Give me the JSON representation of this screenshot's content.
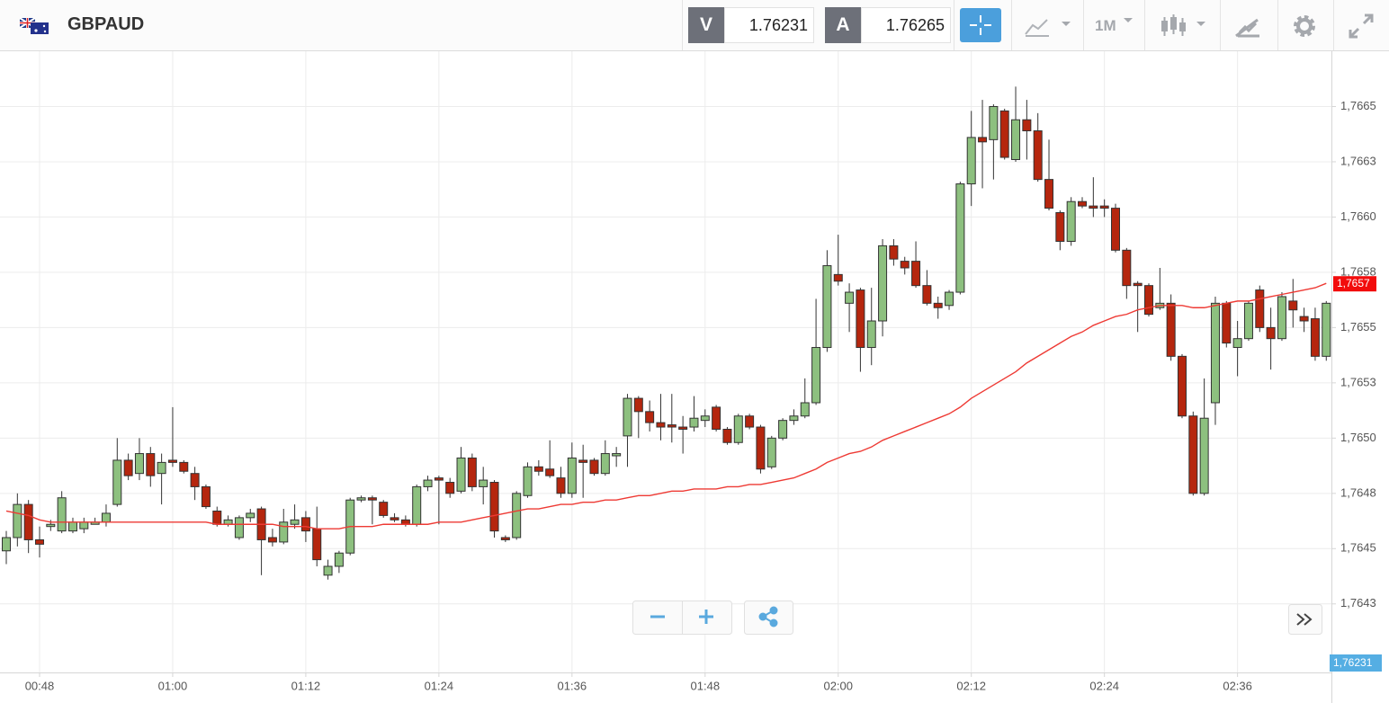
{
  "toolbar": {
    "symbol": "GBPAUD",
    "sell_label": "V",
    "sell_price": 1.76231,
    "buy_label": "A",
    "buy_price": 1.76265,
    "timeframe": "1M"
  },
  "chart_data": {
    "type": "candlestick",
    "categories": [
      null,
      null,
      null,
      "00:48",
      null,
      null,
      null,
      null,
      null,
      null,
      null,
      null,
      null,
      null,
      null,
      "01:00",
      null,
      null,
      null,
      null,
      null,
      null,
      null,
      null,
      null,
      null,
      null,
      "01:12",
      null,
      null,
      null,
      null,
      null,
      null,
      null,
      null,
      null,
      null,
      null,
      "01:24",
      null,
      null,
      null,
      null,
      null,
      null,
      null,
      null,
      null,
      null,
      null,
      "01:36",
      null,
      null,
      null,
      null,
      null,
      null,
      null,
      null,
      null,
      null,
      null,
      "01:48",
      null,
      null,
      null,
      null,
      null,
      null,
      null,
      null,
      null,
      null,
      null,
      "02:00",
      null,
      null,
      null,
      null,
      null,
      null,
      null,
      null,
      null,
      null,
      null,
      "02:12",
      null,
      null,
      null,
      null,
      null,
      null,
      null,
      null,
      null,
      null,
      null,
      "02:24",
      null,
      null,
      null,
      null,
      null,
      null,
      null,
      null,
      null,
      null,
      null,
      "02:36",
      null,
      null,
      null,
      null,
      null,
      null,
      null,
      null
    ],
    "open": [
      1.76449,
      1.76455,
      1.7647,
      1.76454,
      1.7646,
      1.76458,
      1.76458,
      1.76459,
      1.76461,
      1.76462,
      1.7647,
      1.7649,
      1.76484,
      1.76493,
      1.76484,
      1.7649,
      1.76489,
      1.76484,
      1.76478,
      1.76467,
      1.76461,
      1.76455,
      1.76464,
      1.76468,
      1.76455,
      1.76453,
      1.76461,
      1.76464,
      1.76459,
      1.76438,
      1.76442,
      1.76448,
      1.76472,
      1.76473,
      1.76471,
      1.76464,
      1.76463,
      1.76461,
      1.76478,
      1.76482,
      1.7648,
      1.76476,
      1.76491,
      1.76478,
      1.7648,
      1.76455,
      1.76455,
      1.76474,
      1.76487,
      1.76486,
      1.76482,
      1.76475,
      1.7649,
      1.7649,
      1.76484,
      1.76492,
      1.76501,
      1.76518,
      1.76512,
      1.76507,
      1.76506,
      1.76505,
      1.76505,
      1.76508,
      1.76514,
      1.76504,
      1.76498,
      1.7651,
      1.76505,
      1.76487,
      1.765,
      1.76508,
      1.7651,
      1.76516,
      1.76541,
      1.76574,
      1.76561,
      1.76567,
      1.76541,
      1.76553,
      1.76587,
      1.7658,
      1.7658,
      1.76569,
      1.76561,
      1.7656,
      1.76566,
      1.76615,
      1.76636,
      1.76635,
      1.76648,
      1.76626,
      1.76644,
      1.76639,
      1.76617,
      1.76602,
      1.76589,
      1.76607,
      1.76605,
      1.76605,
      1.76604,
      1.76585,
      1.7657,
      1.76569,
      1.76559,
      1.76561,
      1.76537,
      1.7651,
      1.76475,
      1.76516,
      1.76561,
      1.76541,
      1.76545,
      1.76567,
      1.7655,
      1.76545,
      1.76562,
      1.76555,
      1.76554,
      1.76537
    ],
    "high": [
      1.76458,
      1.76475,
      1.76472,
      1.7646,
      1.76463,
      1.76476,
      1.76464,
      1.76464,
      1.76464,
      1.7647,
      1.765,
      1.76493,
      1.765,
      1.76496,
      1.76493,
      1.76514,
      1.7649,
      1.76487,
      1.76479,
      1.76469,
      1.76465,
      1.76465,
      1.76468,
      1.76469,
      1.76459,
      1.76468,
      1.7647,
      1.76467,
      1.76469,
      1.76445,
      1.76449,
      1.76473,
      1.76474,
      1.76474,
      1.76472,
      1.76466,
      1.76465,
      1.76479,
      1.76483,
      1.76483,
      1.76482,
      1.76496,
      1.76493,
      1.76487,
      1.76481,
      1.76456,
      1.76476,
      1.76489,
      1.7649,
      1.76499,
      1.76487,
      1.76498,
      1.76497,
      1.76491,
      1.76499,
      1.76496,
      1.7652,
      1.76519,
      1.76517,
      1.7652,
      1.7652,
      1.7651,
      1.76519,
      1.76513,
      1.76515,
      1.76505,
      1.76511,
      1.76511,
      1.76506,
      1.76501,
      1.76509,
      1.76513,
      1.76527,
      1.76563,
      1.76585,
      1.76592,
      1.7657,
      1.76568,
      1.76568,
      1.7659,
      1.7659,
      1.76582,
      1.76589,
      1.76576,
      1.76564,
      1.76567,
      1.76616,
      1.76648,
      1.76653,
      1.76651,
      1.76649,
      1.76659,
      1.76653,
      1.76647,
      1.76635,
      1.76603,
      1.76609,
      1.76609,
      1.76618,
      1.76608,
      1.76606,
      1.76586,
      1.76571,
      1.7657,
      1.76577,
      1.76565,
      1.76538,
      1.76512,
      1.76527,
      1.76564,
      1.76562,
      1.76553,
      1.76562,
      1.76569,
      1.76559,
      1.76566,
      1.76572,
      1.76559,
      1.76559,
      1.76562
    ],
    "low": [
      1.76443,
      1.76451,
      1.76448,
      1.76446,
      1.76458,
      1.76457,
      1.76457,
      1.76457,
      1.76461,
      1.7646,
      1.76469,
      1.76481,
      1.76481,
      1.76478,
      1.7647,
      1.76487,
      1.76484,
      1.76472,
      1.76468,
      1.7646,
      1.7646,
      1.76454,
      1.76462,
      1.76438,
      1.76451,
      1.76452,
      1.76459,
      1.76453,
      1.76442,
      1.76436,
      1.76439,
      1.76447,
      1.76471,
      1.76461,
      1.76464,
      1.76462,
      1.7646,
      1.7646,
      1.76476,
      1.76461,
      1.76473,
      1.76475,
      1.76476,
      1.7647,
      1.76455,
      1.76453,
      1.76454,
      1.76473,
      1.76483,
      1.76482,
      1.76473,
      1.76473,
      1.76473,
      1.76483,
      1.76483,
      1.76487,
      1.76487,
      1.765,
      1.76503,
      1.76499,
      1.76498,
      1.76493,
      1.76503,
      1.76505,
      1.76503,
      1.76497,
      1.76497,
      1.76504,
      1.76484,
      1.76486,
      1.76499,
      1.76506,
      1.76509,
      1.76515,
      1.76539,
      1.76569,
      1.76548,
      1.7653,
      1.76533,
      1.76546,
      1.76578,
      1.76574,
      1.76568,
      1.7656,
      1.76554,
      1.76558,
      1.76565,
      1.76605,
      1.76613,
      1.76617,
      1.76626,
      1.76625,
      1.76626,
      1.76616,
      1.76603,
      1.76585,
      1.76587,
      1.76604,
      1.766,
      1.766,
      1.76584,
      1.76563,
      1.76548,
      1.76555,
      1.76558,
      1.76535,
      1.76509,
      1.76474,
      1.76474,
      1.76506,
      1.76541,
      1.76528,
      1.76544,
      1.76548,
      1.76531,
      1.76544,
      1.7655,
      1.76548,
      1.76535,
      1.76535
    ],
    "close": [
      1.76455,
      1.7647,
      1.76454,
      1.76452,
      1.76461,
      1.76473,
      1.76462,
      1.76462,
      1.76462,
      1.76466,
      1.7649,
      1.76483,
      1.76493,
      1.76483,
      1.76489,
      1.76489,
      1.76485,
      1.76478,
      1.76469,
      1.76461,
      1.76463,
      1.76464,
      1.76466,
      1.76454,
      1.76453,
      1.76462,
      1.76463,
      1.76458,
      1.76445,
      1.76442,
      1.76448,
      1.76472,
      1.76473,
      1.76472,
      1.76465,
      1.76463,
      1.76461,
      1.76478,
      1.76481,
      1.76481,
      1.76475,
      1.76491,
      1.76478,
      1.76481,
      1.76458,
      1.76454,
      1.76475,
      1.76487,
      1.76485,
      1.76483,
      1.76475,
      1.76491,
      1.76489,
      1.76484,
      1.76493,
      1.76493,
      1.76518,
      1.76512,
      1.76507,
      1.76505,
      1.76505,
      1.76504,
      1.76509,
      1.7651,
      1.76504,
      1.76498,
      1.7651,
      1.76505,
      1.76486,
      1.765,
      1.76508,
      1.7651,
      1.76516,
      1.76541,
      1.76578,
      1.76571,
      1.76566,
      1.76541,
      1.76553,
      1.76587,
      1.76581,
      1.76577,
      1.76569,
      1.76561,
      1.76559,
      1.76566,
      1.76615,
      1.76636,
      1.76634,
      1.7665,
      1.76627,
      1.76644,
      1.76639,
      1.76617,
      1.76604,
      1.76589,
      1.76607,
      1.76605,
      1.76604,
      1.76604,
      1.76585,
      1.76569,
      1.76569,
      1.76556,
      1.76561,
      1.76537,
      1.7651,
      1.76475,
      1.76509,
      1.76561,
      1.76543,
      1.76545,
      1.76561,
      1.7655,
      1.76545,
      1.76564,
      1.76558,
      1.76553,
      1.76537,
      1.76561
    ],
    "up_color": "#8dc07f",
    "down_color": "#b5260e",
    "moving_average": {
      "color": "#ee3a34",
      "values": [
        1.76467,
        1.76466,
        1.76465,
        1.76463,
        1.76462,
        1.76462,
        1.76462,
        1.76462,
        1.76462,
        1.76462,
        1.76462,
        1.76462,
        1.76462,
        1.76462,
        1.76462,
        1.76462,
        1.76462,
        1.76462,
        1.76462,
        1.76461,
        1.76461,
        1.76461,
        1.76461,
        1.76461,
        1.76461,
        1.7646,
        1.7646,
        1.7646,
        1.76459,
        1.76459,
        1.76459,
        1.7646,
        1.7646,
        1.7646,
        1.76461,
        1.76461,
        1.76461,
        1.76461,
        1.76461,
        1.76462,
        1.76462,
        1.76462,
        1.76463,
        1.76464,
        1.76465,
        1.76466,
        1.76467,
        1.76468,
        1.76468,
        1.76469,
        1.7647,
        1.7647,
        1.76471,
        1.76471,
        1.76472,
        1.76472,
        1.76473,
        1.76474,
        1.76474,
        1.76475,
        1.76476,
        1.76476,
        1.76477,
        1.76477,
        1.76477,
        1.76478,
        1.76478,
        1.76479,
        1.76479,
        1.7648,
        1.76481,
        1.76482,
        1.76484,
        1.76486,
        1.76489,
        1.76491,
        1.76493,
        1.76494,
        1.76496,
        1.76499,
        1.76501,
        1.76503,
        1.76505,
        1.76507,
        1.76509,
        1.76511,
        1.76514,
        1.76518,
        1.76521,
        1.76524,
        1.76527,
        1.7653,
        1.76534,
        1.76537,
        1.7654,
        1.76543,
        1.76546,
        1.76548,
        1.76551,
        1.76553,
        1.76555,
        1.76556,
        1.76558,
        1.76559,
        1.7656,
        1.7656,
        1.7656,
        1.76559,
        1.76559,
        1.7656,
        1.76561,
        1.76562,
        1.76562,
        1.76563,
        1.76564,
        1.76565,
        1.76566,
        1.76567,
        1.76568,
        1.7657
      ]
    },
    "ylim": [
      1.76394,
      1.76675
    ],
    "yticks": [
      {
        "value": 1.7665,
        "label": "1,7665"
      },
      {
        "value": 1.76625,
        "label": "1,7663"
      },
      {
        "value": 1.766,
        "label": "1,7660"
      },
      {
        "value": 1.76575,
        "label": "1,7658"
      },
      {
        "value": 1.7655,
        "label": "1,7655"
      },
      {
        "value": 1.76525,
        "label": "1,7653"
      },
      {
        "value": 1.765,
        "label": "1,7650"
      },
      {
        "value": 1.76475,
        "label": "1,7648"
      },
      {
        "value": 1.7645,
        "label": "1,7645"
      },
      {
        "value": 1.76425,
        "label": "1,7643"
      }
    ],
    "grid": true,
    "last_value": {
      "value": 1.7657,
      "label": "1,7657",
      "color": "#f20c0c"
    },
    "price_tag": {
      "label": "1,76231",
      "color": "#55aee3"
    }
  }
}
